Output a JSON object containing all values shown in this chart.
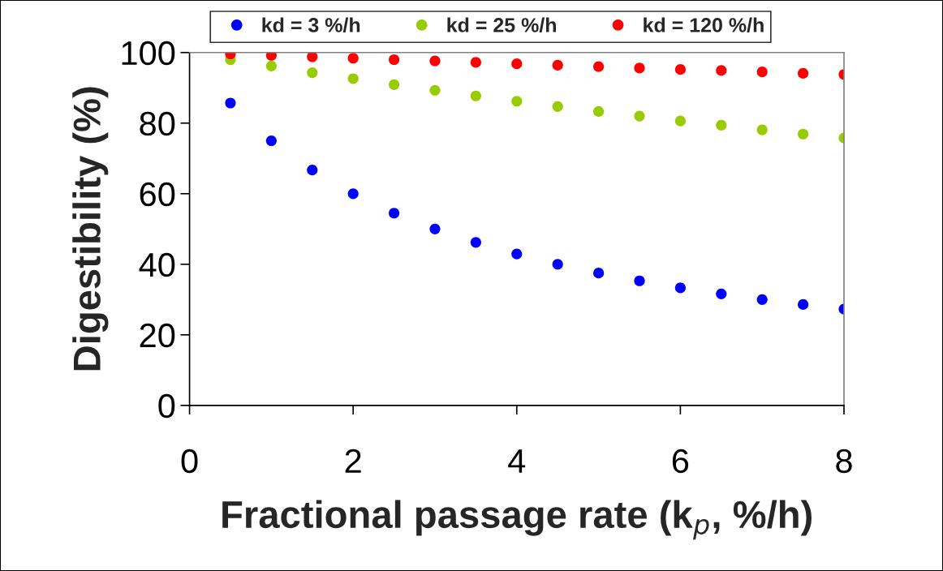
{
  "chart_data": {
    "type": "scatter",
    "xlabel": "Fractional passage rate (k$_{p}$, %/h)",
    "ylabel": "Digestibility (%)",
    "x": [
      0.5,
      1,
      1.5,
      2,
      2.5,
      3,
      3.5,
      4,
      4.5,
      5,
      5.5,
      6,
      6.5,
      7,
      7.5,
      8
    ],
    "series": [
      {
        "name": "kd = 3 %/h",
        "color": "#0000ff",
        "values": [
          85.7,
          75.0,
          66.7,
          60.0,
          54.5,
          50.0,
          46.2,
          42.9,
          40.0,
          37.5,
          35.3,
          33.3,
          31.6,
          30.0,
          28.6,
          27.3
        ]
      },
      {
        "name": "kd = 25 %/h",
        "color": "#99cc00",
        "values": [
          98.0,
          96.2,
          94.3,
          92.6,
          90.9,
          89.3,
          87.7,
          86.2,
          84.7,
          83.3,
          82.0,
          80.6,
          79.4,
          78.1,
          76.9,
          75.8
        ]
      },
      {
        "name": "kd = 120 %/h",
        "color": "#ff0000",
        "values": [
          99.6,
          99.2,
          98.8,
          98.4,
          98.0,
          97.6,
          97.2,
          96.8,
          96.4,
          96.0,
          95.6,
          95.2,
          94.9,
          94.5,
          94.1,
          93.8
        ]
      }
    ],
    "xlim": [
      0,
      8
    ],
    "xticks": [
      0,
      2,
      4,
      6,
      8
    ],
    "ylim": [
      0,
      100
    ],
    "yticks": [
      0,
      20,
      40,
      60,
      80,
      100
    ],
    "marker": "circle",
    "legend": "top",
    "grid": false
  }
}
